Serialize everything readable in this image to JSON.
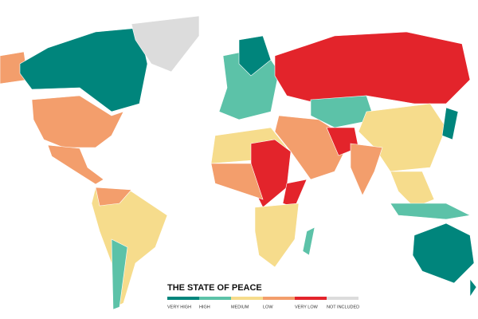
{
  "title": "THE STATE OF PEACE",
  "legend": [
    {
      "label": "VERY HIGH",
      "color": "#00857c"
    },
    {
      "label": "HIGH",
      "color": "#5cc2a8"
    },
    {
      "label": "MEDIUM",
      "color": "#f6dc8c"
    },
    {
      "label": "LOW",
      "color": "#f39e6c"
    },
    {
      "label": "VERY LOW",
      "color": "#e3242b"
    },
    {
      "label": "NOT INCLUDED",
      "color": "#dcdcdc"
    }
  ]
}
